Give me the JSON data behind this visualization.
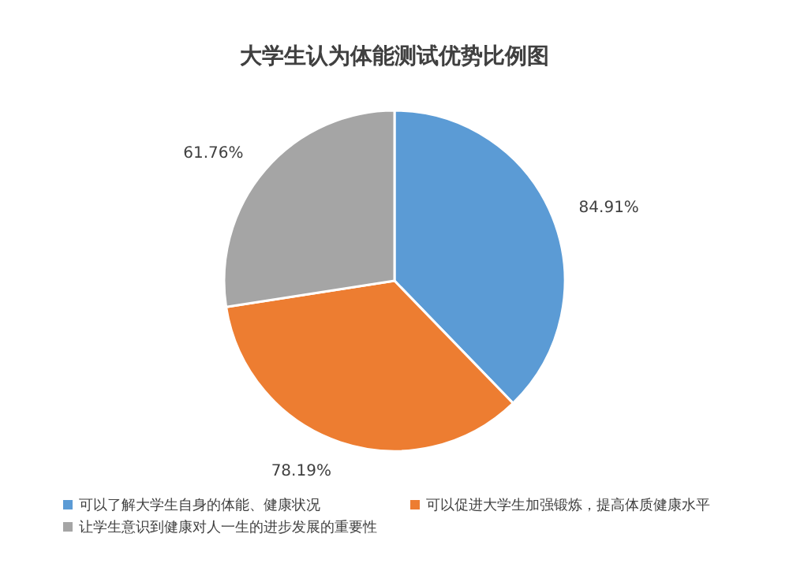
{
  "chart_data": {
    "type": "pie",
    "title": "大学生认为体能测试优势比例图",
    "categories": [
      "可以了解大学生自身的体能、健康状况",
      "可以促进大学生加强锻炼，提高体质健康水平",
      "让学生意识到健康对人一生的进步发展的重要性"
    ],
    "values": [
      84.91,
      78.19,
      61.76
    ],
    "value_labels": [
      "84.91%",
      "78.19%",
      "61.76%"
    ],
    "colors": [
      "#5b9bd5",
      "#ed7d31",
      "#a5a5a5"
    ],
    "legend": "bottom"
  }
}
